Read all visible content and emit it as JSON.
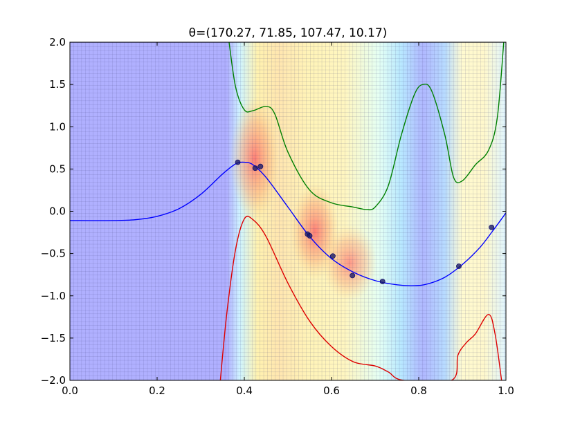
{
  "chart_data": {
    "type": "line",
    "title": "θ=(170.27, 71.85, 107.47, 10.17)",
    "xlabel": "",
    "ylabel": "",
    "xlim": [
      0.0,
      1.0
    ],
    "ylim": [
      -2.0,
      2.0
    ],
    "x_ticks": [
      "0.0",
      "0.2",
      "0.4",
      "0.6",
      "0.8",
      "1.0"
    ],
    "x_tick_values": [
      0.0,
      0.2,
      0.4,
      0.6,
      0.8,
      1.0
    ],
    "y_ticks": [
      "2.0",
      "1.5",
      "1.0",
      "0.5",
      "0.0",
      "−0.5",
      "−1.0",
      "−1.5",
      "−2.0"
    ],
    "y_tick_values": [
      2.0,
      1.5,
      1.0,
      0.5,
      0.0,
      -0.5,
      -1.0,
      -1.5,
      -2.0
    ],
    "grid": true,
    "background": "heatmap (jet colormap, light): blue low, cyan/yellow mid, red high density",
    "colors": {
      "mean": "#0000ff",
      "upper": "#008000",
      "lower": "#dd0000",
      "points": "#1a1a66"
    },
    "series": [
      {
        "color": "#0000ff",
        "x": [
          0.0,
          0.1,
          0.15,
          0.2,
          0.25,
          0.3,
          0.35,
          0.38,
          0.4,
          0.42,
          0.45,
          0.5,
          0.55,
          0.6,
          0.65,
          0.7,
          0.75,
          0.79,
          0.82,
          0.86,
          0.9,
          0.94,
          0.97,
          1.0
        ],
        "y": [
          -0.11,
          -0.11,
          -0.1,
          -0.06,
          0.03,
          0.2,
          0.44,
          0.56,
          0.58,
          0.55,
          0.4,
          0.05,
          -0.3,
          -0.56,
          -0.72,
          -0.82,
          -0.87,
          -0.88,
          -0.86,
          -0.78,
          -0.63,
          -0.43,
          -0.23,
          -0.02
        ]
      },
      {
        "color": "#008000",
        "x": [
          0.365,
          0.38,
          0.4,
          0.42,
          0.45,
          0.47,
          0.5,
          0.55,
          0.6,
          0.65,
          0.68,
          0.7,
          0.73,
          0.76,
          0.79,
          0.81,
          0.83,
          0.86,
          0.88,
          0.9,
          0.93,
          0.96,
          0.98,
          0.995
        ],
        "y": [
          2.0,
          1.47,
          1.2,
          1.19,
          1.24,
          1.15,
          0.7,
          0.25,
          0.1,
          0.05,
          0.02,
          0.05,
          0.3,
          0.9,
          1.38,
          1.5,
          1.42,
          0.9,
          0.4,
          0.36,
          0.55,
          0.72,
          1.1,
          2.0
        ]
      },
      {
        "color": "#dd0000",
        "x": [
          0.345,
          0.36,
          0.38,
          0.4,
          0.42,
          0.45,
          0.5,
          0.55,
          0.6,
          0.65,
          0.7,
          0.73,
          0.765,
          0.875,
          0.89,
          0.91,
          0.93,
          0.96,
          0.975,
          0.99
        ],
        "y": [
          -2.0,
          -1.2,
          -0.45,
          -0.09,
          -0.1,
          -0.3,
          -0.85,
          -1.3,
          -1.6,
          -1.78,
          -1.83,
          -1.9,
          -2.0,
          -2.0,
          -1.7,
          -1.55,
          -1.45,
          -1.22,
          -1.45,
          -2.0
        ]
      }
    ],
    "points": {
      "x": [
        0.385,
        0.425,
        0.437,
        0.545,
        0.55,
        0.603,
        0.648,
        0.717,
        0.892,
        0.967
      ],
      "y": [
        0.58,
        0.51,
        0.53,
        -0.27,
        -0.29,
        -0.53,
        -0.76,
        -0.83,
        -0.65,
        -0.19
      ]
    }
  }
}
